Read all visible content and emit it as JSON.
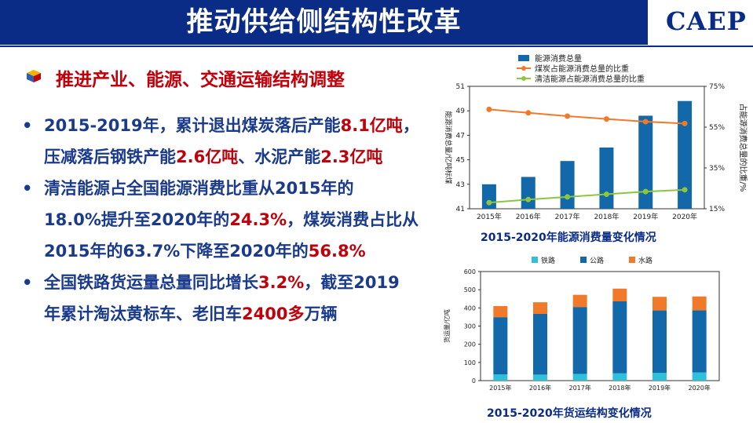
{
  "header": {
    "title": "推动供给侧结构性改革",
    "logo": "CAEP"
  },
  "section_title": "推进产业、能源、交通运输结构调整",
  "bullets": [
    [
      {
        "t": "2015-2019年，累计退出煤炭落后产能",
        "r": false
      },
      {
        "t": "8.1亿吨",
        "r": true
      },
      {
        "t": "，",
        "r": false
      }
    ],
    [
      {
        "t": "压减落后钢铁产能",
        "r": false
      },
      {
        "t": "2.6亿吨",
        "r": true
      },
      {
        "t": "、水泥产能",
        "r": false
      },
      {
        "t": "2.3亿吨",
        "r": true
      }
    ],
    [
      {
        "t": "清洁能源占全国能源消费比重从2015年的",
        "r": false
      }
    ],
    [
      {
        "t": "18.0%提升至2020年的",
        "r": false
      },
      {
        "t": "24.3%",
        "r": true
      },
      {
        "t": "，煤炭消费占比从",
        "r": false
      }
    ],
    [
      {
        "t": "2015年的63.7%下降至2020年的",
        "r": false
      },
      {
        "t": "56.8%",
        "r": true
      }
    ],
    [
      {
        "t": "全国铁路货运量总量同比增长",
        "r": false
      },
      {
        "t": "3.2%",
        "r": true
      },
      {
        "t": "，截至2019",
        "r": false
      }
    ],
    [
      {
        "t": "年累计淘汰黄标车、老旧车",
        "r": false
      },
      {
        "t": "2400多",
        "r": true
      },
      {
        "t": "万辆",
        "r": false
      }
    ]
  ],
  "bullet_starts": [
    0,
    2,
    5
  ],
  "chart_data": [
    {
      "type": "bar+line",
      "caption": "2015-2020年能源消费量变化情况",
      "categories": [
        "2015年",
        "2016年",
        "2017年",
        "2018年",
        "2019年",
        "2020年"
      ],
      "ylabel": "能源消费总量/亿吨标煤",
      "y2label": "占能源消费总量的比重/%",
      "ylim": [
        41,
        51
      ],
      "yticks": [
        41,
        43,
        45,
        47,
        49,
        51
      ],
      "y2lim": [
        15,
        75
      ],
      "y2ticks": [
        "15%",
        "35%",
        "55%",
        "75%"
      ],
      "series": [
        {
          "name": "能源消费总量",
          "kind": "bar",
          "axis": "left",
          "color": "#1268a8",
          "values": [
            43.0,
            43.6,
            44.9,
            46.0,
            48.6,
            49.8
          ]
        },
        {
          "name": "煤炭占能源消费总量的比重",
          "kind": "line",
          "axis": "right",
          "color": "#f07a2a",
          "values": [
            63.7,
            62.0,
            60.4,
            59.0,
            57.7,
            56.8
          ]
        },
        {
          "name": "清洁能源占能源消费总量的比重",
          "kind": "line",
          "axis": "right",
          "color": "#8cc63f",
          "values": [
            18.0,
            19.5,
            20.8,
            22.1,
            23.4,
            24.3
          ]
        }
      ]
    },
    {
      "type": "stacked-bar",
      "caption": "2015-2020年货运结构变化情况",
      "categories": [
        "2015年",
        "2016年",
        "2017年",
        "2018年",
        "2019年",
        "2020年"
      ],
      "ylabel": "货运量/亿吨",
      "ylim": [
        0,
        600
      ],
      "yticks": [
        0,
        100,
        200,
        300,
        400,
        500,
        600
      ],
      "series": [
        {
          "name": "铁路",
          "color": "#2fc0dc",
          "values": [
            34,
            33,
            37,
            40,
            43,
            45
          ]
        },
        {
          "name": "公路",
          "color": "#1268a8",
          "values": [
            315,
            334,
            368,
            396,
            343,
            342
          ]
        },
        {
          "name": "水路",
          "color": "#f07a2a",
          "values": [
            61,
            64,
            67,
            70,
            75,
            76
          ]
        }
      ]
    }
  ]
}
